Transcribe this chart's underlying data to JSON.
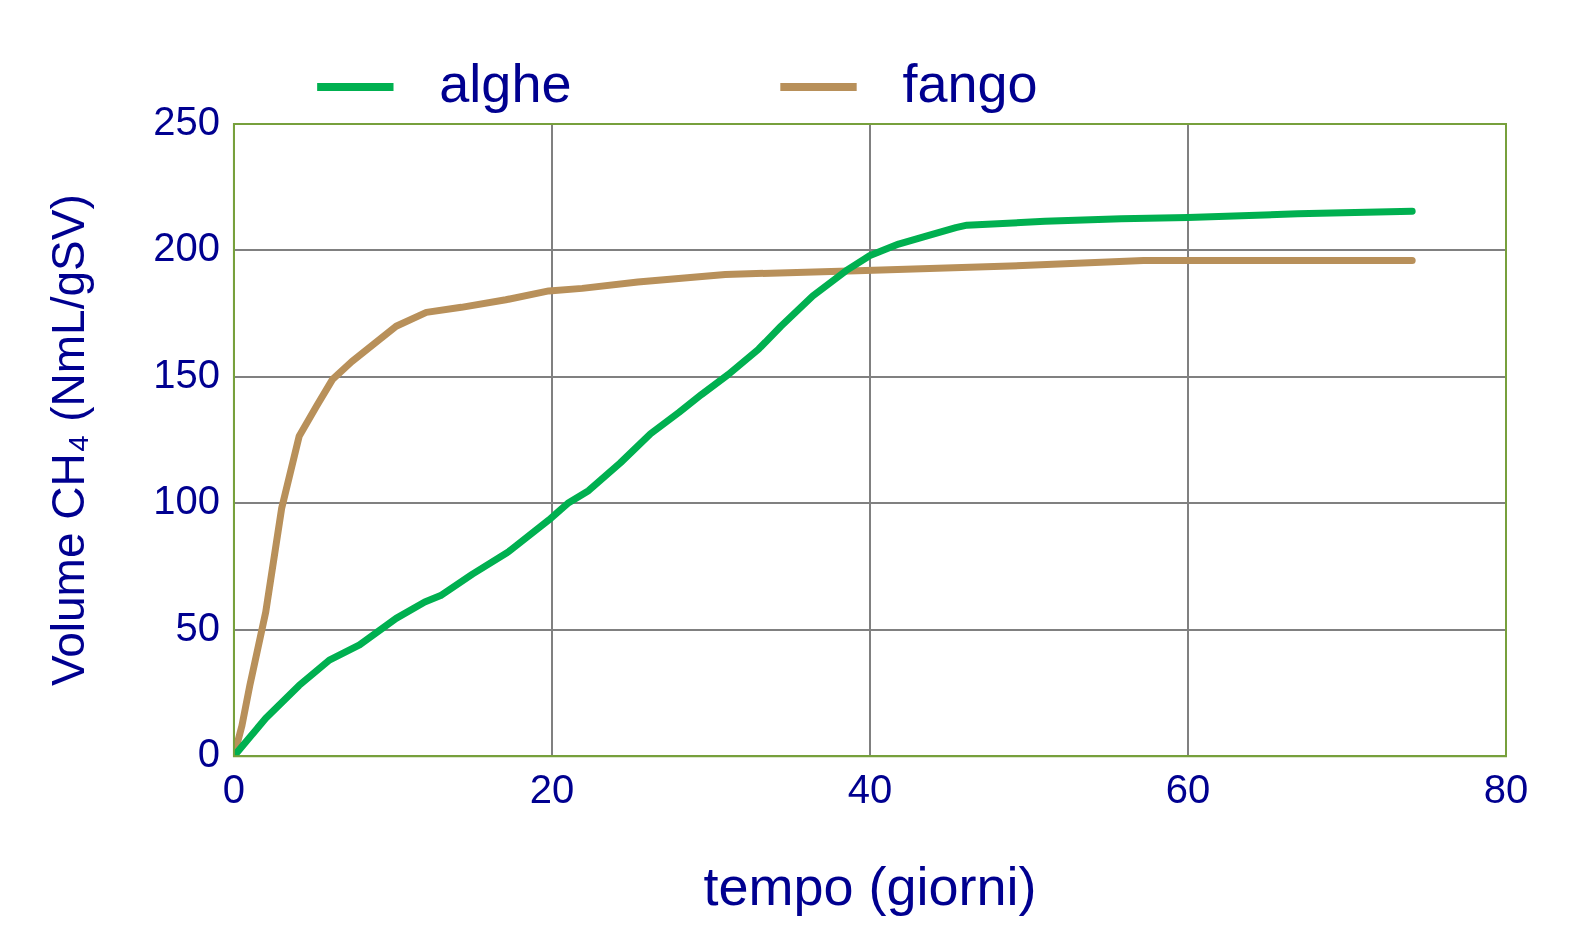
{
  "chart_data": {
    "type": "line",
    "xlabel": "tempo (giorni)",
    "ylabel": "Volume CH₄ (NmL/gSV)",
    "xlim": [
      0,
      80
    ],
    "xticks": [
      0,
      20,
      40,
      60,
      80
    ],
    "ylim": [
      0,
      250
    ],
    "yticks": [
      0,
      50,
      100,
      150,
      200,
      250
    ],
    "grid": true,
    "legend": "top",
    "marker": "none",
    "line_style": "solid",
    "series": [
      {
        "name": "alghe",
        "color": "#00b050",
        "x": [
          0,
          2,
          4.1,
          6,
          7.9,
          10.2,
          12,
          13,
          15,
          17.3,
          19.8,
          21,
          22.3,
          24.3,
          26.2,
          28,
          29.4,
          31.1,
          33,
          34.4,
          36.4,
          38.5,
          40,
          41.8,
          43.7,
          45.4,
          46.1,
          51,
          55.8,
          60,
          66.9,
          74.1
        ],
        "values": [
          0,
          15,
          28,
          38,
          44,
          54.5,
          61,
          63.5,
          72,
          81,
          93.4,
          100,
          105,
          116,
          127.5,
          136,
          143,
          151,
          161,
          170,
          182,
          192,
          198,
          202.5,
          206,
          209,
          210,
          211.5,
          212.5,
          213,
          214.5,
          215.5
        ]
      },
      {
        "name": "fango",
        "color": "#b8905a",
        "x": [
          0,
          0.5,
          1,
          2,
          3,
          4.1,
          5.2,
          6.2,
          7.4,
          8.8,
          10.2,
          12.1,
          14.3,
          17.1,
          19.8,
          21.9,
          25.4,
          30.9,
          39.2,
          49.6,
          57.2,
          60,
          74.1
        ],
        "values": [
          0,
          12,
          28,
          57,
          98,
          126.5,
          138.5,
          149,
          156,
          163,
          170,
          175.5,
          177.5,
          180.5,
          184,
          185,
          187.5,
          190.5,
          192,
          194,
          196,
          196,
          196
        ]
      }
    ]
  }
}
